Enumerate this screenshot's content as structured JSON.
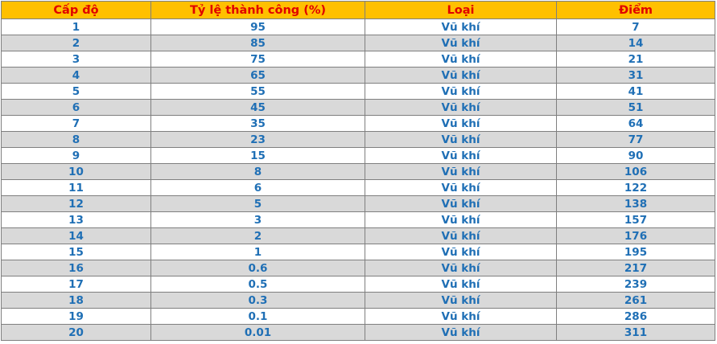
{
  "table": {
    "headers": [
      "Cấp độ",
      "Tỷ lệ thành công (%)",
      "Loại",
      "Điểm"
    ],
    "rows": [
      {
        "level": "1",
        "rate": "95",
        "type": "Vũ khí",
        "points": "7"
      },
      {
        "level": "2",
        "rate": "85",
        "type": "Vũ khí",
        "points": "14"
      },
      {
        "level": "3",
        "rate": "75",
        "type": "Vũ khí",
        "points": "21"
      },
      {
        "level": "4",
        "rate": "65",
        "type": "Vũ khí",
        "points": "31"
      },
      {
        "level": "5",
        "rate": "55",
        "type": "Vũ khí",
        "points": "41"
      },
      {
        "level": "6",
        "rate": "45",
        "type": "Vũ khí",
        "points": "51"
      },
      {
        "level": "7",
        "rate": "35",
        "type": "Vũ khí",
        "points": "64"
      },
      {
        "level": "8",
        "rate": "23",
        "type": "Vũ khí",
        "points": "77"
      },
      {
        "level": "9",
        "rate": "15",
        "type": "Vũ khí",
        "points": "90"
      },
      {
        "level": "10",
        "rate": "8",
        "type": "Vũ khí",
        "points": "106"
      },
      {
        "level": "11",
        "rate": "6",
        "type": "Vũ khí",
        "points": "122"
      },
      {
        "level": "12",
        "rate": "5",
        "type": "Vũ khí",
        "points": "138"
      },
      {
        "level": "13",
        "rate": "3",
        "type": "Vũ khí",
        "points": "157"
      },
      {
        "level": "14",
        "rate": "2",
        "type": "Vũ khí",
        "points": "176"
      },
      {
        "level": "15",
        "rate": "1",
        "type": "Vũ khí",
        "points": "195"
      },
      {
        "level": "16",
        "rate": "0.6",
        "type": "Vũ khí",
        "points": "217"
      },
      {
        "level": "17",
        "rate": "0.5",
        "type": "Vũ khí",
        "points": "239"
      },
      {
        "level": "18",
        "rate": "0.3",
        "type": "Vũ khí",
        "points": "261"
      },
      {
        "level": "19",
        "rate": "0.1",
        "type": "Vũ khí",
        "points": "286"
      },
      {
        "level": "20",
        "rate": "0.01",
        "type": "Vũ khí",
        "points": "311"
      }
    ]
  },
  "colors": {
    "header_background": "#ffc000",
    "header_text": "#e00000",
    "cell_text": "#1f6fb5",
    "stripe_background": "#d9d9d9",
    "border": "#7f7f7f"
  }
}
